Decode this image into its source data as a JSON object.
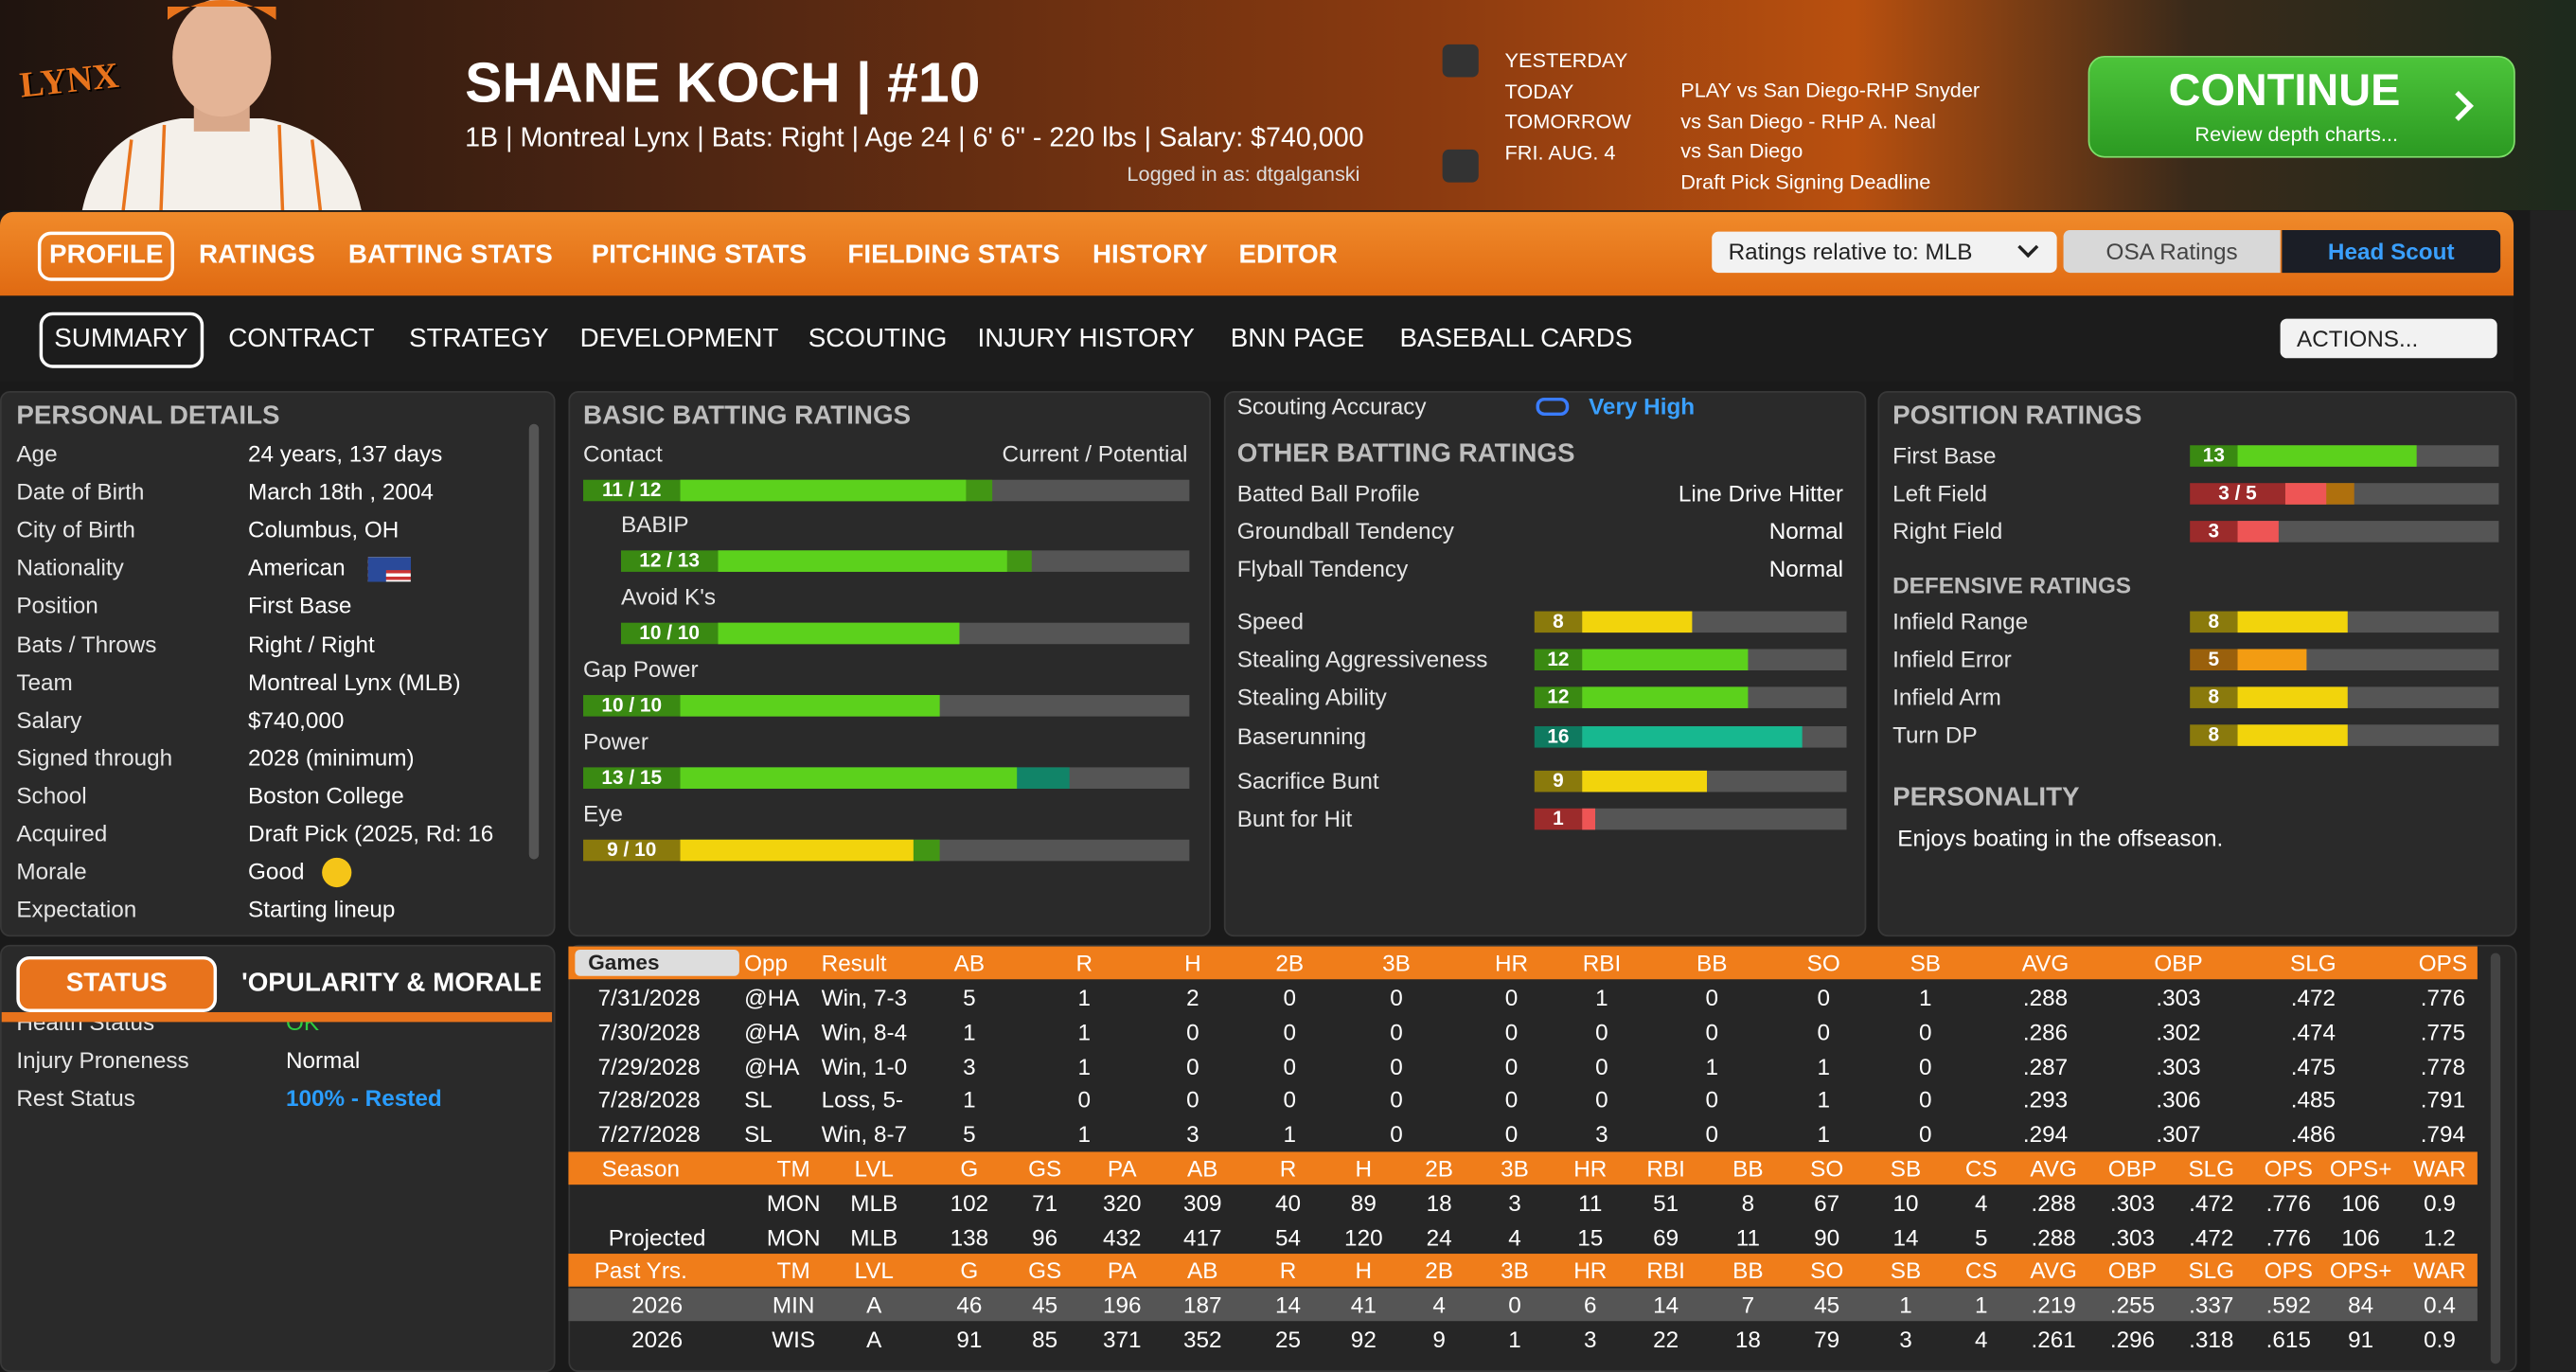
{
  "header": {
    "team_logo": "LYNX",
    "title": "SHANE KOCH  |  #10",
    "details": "1B | Montreal Lynx  |  Bats: Right  |  Age 24  |  6' 6\" - 220 lbs  |  Salary: $740,000",
    "logged_in": "Logged in as: dtgalganski"
  },
  "schedule": {
    "days": [
      "YESTERDAY",
      "TODAY",
      "TOMORROW",
      "FRI. AUG. 4"
    ],
    "events": [
      "PLAY vs San Diego-RHP Snyder",
      "vs San Diego - RHP A. Neal",
      "vs San Diego",
      "Draft Pick Signing Deadline"
    ]
  },
  "continue_button": {
    "label": "CONTINUE",
    "sublabel": "Review depth charts..."
  },
  "main_tabs": {
    "items": [
      "PROFILE",
      "RATINGS",
      "BATTING STATS",
      "PITCHING STATS",
      "FIELDING STATS",
      "HISTORY",
      "EDITOR"
    ],
    "active": 0
  },
  "rating_controls": {
    "relative_to": "Ratings relative to: MLB",
    "options": [
      "OSA Ratings",
      "Head Scout"
    ]
  },
  "sub_tabs": {
    "items": [
      "SUMMARY",
      "CONTRACT",
      "STRATEGY",
      "DEVELOPMENT",
      "SCOUTING",
      "INJURY HISTORY",
      "BNN PAGE",
      "BASEBALL CARDS"
    ],
    "active": 0,
    "actions": "ACTIONS..."
  },
  "personal_details": {
    "title": "PERSONAL DETAILS",
    "rows": [
      [
        "Age",
        "24 years, 137 days"
      ],
      [
        "Date of Birth",
        "March 18th , 2004"
      ],
      [
        "City of Birth",
        "Columbus, OH"
      ],
      [
        "Nationality",
        "American"
      ],
      [
        "Position",
        "First Base"
      ],
      [
        "Bats / Throws",
        "Right / Right"
      ],
      [
        "Team",
        "Montreal Lynx (MLB)"
      ],
      [
        "Salary",
        "$740,000"
      ],
      [
        "Signed through",
        "2028 (minimum)"
      ],
      [
        "School",
        "Boston College"
      ],
      [
        "Acquired",
        "Draft Pick (2025, Rd: 16"
      ],
      [
        "Morale",
        "Good"
      ],
      [
        "Expectation",
        "Starting lineup"
      ]
    ]
  },
  "basic_batting": {
    "title": "BASIC BATTING RATINGS",
    "column_label": "Current / Potential",
    "ratings": [
      {
        "name": "Contact",
        "label": "11 / 12",
        "current": 11,
        "potential": 12
      },
      {
        "name": "BABIP",
        "label": "12 / 13",
        "current": 12,
        "potential": 13,
        "indent": true
      },
      {
        "name": "Avoid K's",
        "label": "10 / 10",
        "current": 10,
        "potential": 10,
        "indent": true
      },
      {
        "name": "Gap Power",
        "label": "10 / 10",
        "current": 10,
        "potential": 10
      },
      {
        "name": "Power",
        "label": "13 / 15",
        "current": 13,
        "potential": 15
      },
      {
        "name": "Eye",
        "label": "9 / 10",
        "current": 9,
        "potential": 10
      }
    ]
  },
  "other_batting": {
    "accuracy_label": "Scouting Accuracy",
    "accuracy": "Very High",
    "title": "OTHER BATTING RATINGS",
    "text_rows": [
      [
        "Batted Ball Profile",
        "Line Drive Hitter"
      ],
      [
        "Groundball Tendency",
        "Normal"
      ],
      [
        "Flyball Tendency",
        "Normal"
      ]
    ],
    "ratings": [
      {
        "name": "Speed",
        "current": 8
      },
      {
        "name": "Stealing Aggressiveness",
        "current": 12
      },
      {
        "name": "Stealing Ability",
        "current": 12
      },
      {
        "name": "Baserunning",
        "current": 16
      },
      {
        "name": "Sacrifice Bunt",
        "current": 9
      },
      {
        "name": "Bunt for Hit",
        "current": 1
      }
    ]
  },
  "position": {
    "title": "POSITION RATINGS",
    "ratings": [
      {
        "name": "First Base",
        "current": 13
      },
      {
        "name": "Left Field",
        "label": "3 / 5",
        "current": 3,
        "potential": 5
      },
      {
        "name": "Right Field",
        "current": 3
      }
    ],
    "defensive_title": "DEFENSIVE RATINGS",
    "defensive": [
      {
        "name": "Infield Range",
        "current": 8
      },
      {
        "name": "Infield Error",
        "current": 5
      },
      {
        "name": "Infield Arm",
        "current": 8
      },
      {
        "name": "Turn DP",
        "current": 8
      }
    ],
    "personality_title": "PERSONALITY",
    "personality": "Enjoys boating in the offseason."
  },
  "status": {
    "tabs": [
      "STATUS",
      "'OPULARITY & MORALE"
    ],
    "rows": [
      [
        "Health Status",
        "OK"
      ],
      [
        "Injury Proneness",
        "Normal"
      ],
      [
        "Rest Status",
        "100% - Rested"
      ]
    ]
  },
  "games_table": {
    "dropdown": "Games",
    "columns": [
      "Opp",
      "Result",
      "AB",
      "R",
      "H",
      "2B",
      "3B",
      "HR",
      "RBI",
      "BB",
      "SO",
      "SB",
      "AVG",
      "OBP",
      "SLG",
      "OPS"
    ],
    "rows": [
      [
        "7/31/2028",
        "@HA",
        "Win, 7-3",
        "5",
        "1",
        "2",
        "0",
        "0",
        "0",
        "1",
        "0",
        "0",
        "1",
        ".288",
        ".303",
        ".472",
        ".776"
      ],
      [
        "7/30/2028",
        "@HA",
        "Win, 8-4",
        "1",
        "1",
        "0",
        "0",
        "0",
        "0",
        "0",
        "0",
        "0",
        "0",
        ".286",
        ".302",
        ".474",
        ".775"
      ],
      [
        "7/29/2028",
        "@HA",
        "Win, 1-0",
        "3",
        "1",
        "0",
        "0",
        "0",
        "0",
        "0",
        "1",
        "1",
        "0",
        ".287",
        ".303",
        ".475",
        ".778"
      ],
      [
        "7/28/2028",
        "SL",
        "Loss, 5-",
        "1",
        "0",
        "0",
        "0",
        "0",
        "0",
        "0",
        "0",
        "1",
        "0",
        ".293",
        ".306",
        ".485",
        ".791"
      ],
      [
        "7/27/2028",
        "SL",
        "Win, 8-7",
        "5",
        "1",
        "3",
        "1",
        "0",
        "0",
        "3",
        "0",
        "1",
        "0",
        ".294",
        ".307",
        ".486",
        ".794"
      ]
    ]
  },
  "season_table": {
    "columns": [
      "Season",
      "TM",
      "LVL",
      "G",
      "GS",
      "PA",
      "AB",
      "R",
      "H",
      "2B",
      "3B",
      "HR",
      "RBI",
      "BB",
      "SO",
      "SB",
      "CS",
      "AVG",
      "OBP",
      "SLG",
      "OPS",
      "OPS+",
      "WAR"
    ],
    "rows": [
      {
        "cells": [
          "MON",
          "MLB",
          "102",
          "71",
          "320",
          "309",
          "40",
          "89",
          "18",
          "3",
          "11",
          "51",
          "8",
          "67",
          "10",
          "4",
          ".288",
          ".303",
          ".472",
          ".776",
          "106",
          "0.9"
        ]
      },
      {
        "label": "Projected",
        "cells": [
          "MON",
          "MLB",
          "138",
          "96",
          "432",
          "417",
          "54",
          "120",
          "24",
          "4",
          "15",
          "69",
          "11",
          "90",
          "14",
          "5",
          ".288",
          ".303",
          ".472",
          ".776",
          "106",
          "1.2"
        ]
      }
    ]
  },
  "past_table": {
    "columns": [
      "Past Yrs.",
      "TM",
      "LVL",
      "G",
      "GS",
      "PA",
      "AB",
      "R",
      "H",
      "2B",
      "3B",
      "HR",
      "RBI",
      "BB",
      "SO",
      "SB",
      "CS",
      "AVG",
      "OBP",
      "SLG",
      "OPS",
      "OPS+",
      "WAR"
    ],
    "rows": [
      [
        "2026",
        "MIN",
        "A",
        "46",
        "45",
        "196",
        "187",
        "14",
        "41",
        "4",
        "0",
        "6",
        "14",
        "7",
        "45",
        "1",
        "1",
        ".219",
        ".255",
        ".337",
        ".592",
        "84",
        "0.4"
      ],
      [
        "2026",
        "WIS",
        "A",
        "91",
        "85",
        "371",
        "352",
        "25",
        "92",
        "9",
        "1",
        "3",
        "22",
        "18",
        "79",
        "3",
        "4",
        ".261",
        ".296",
        ".318",
        ".615",
        "91",
        "0.9"
      ]
    ]
  }
}
